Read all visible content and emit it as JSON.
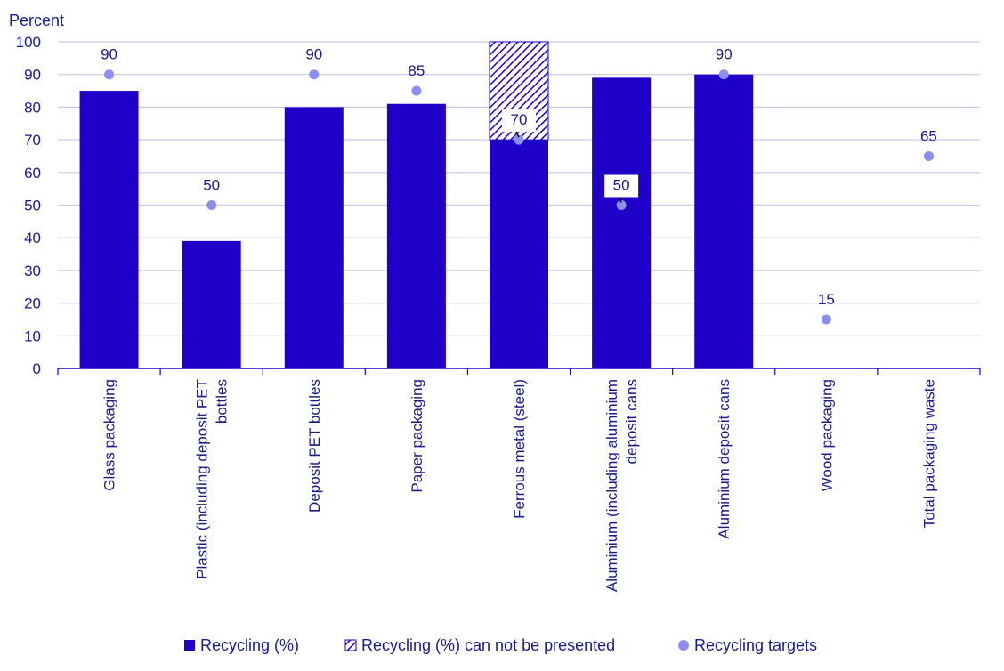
{
  "chart_data": {
    "type": "bar",
    "ylabel": "Percent",
    "ylim": [
      0,
      100
    ],
    "yticks": [
      0,
      10,
      20,
      30,
      40,
      50,
      60,
      70,
      80,
      90,
      100
    ],
    "grid": true,
    "categories": [
      [
        "Glass packaging"
      ],
      [
        "Plastic (including deposit PET",
        "bottles"
      ],
      [
        "Deposit PET bottles"
      ],
      [
        "Paper packaging"
      ],
      [
        "Ferrous metal (steel)"
      ],
      [
        "Aluminium (including aluminium",
        "deposit cans"
      ],
      [
        "Aluminium deposit cans"
      ],
      [
        "Wood packaging"
      ],
      [
        "Total packaging waste"
      ]
    ],
    "series": [
      {
        "name": "Recycling (%)",
        "type": "bar",
        "values": [
          85,
          39,
          80,
          81,
          70,
          89,
          90,
          null,
          null
        ]
      },
      {
        "name": "Recycling (%) can not be presented",
        "type": "bar-hatched",
        "values": [
          null,
          null,
          null,
          null,
          30,
          null,
          null,
          null,
          null
        ]
      },
      {
        "name": "Recycling targets",
        "type": "point",
        "values": [
          90,
          50,
          90,
          85,
          70,
          50,
          90,
          15,
          65
        ]
      }
    ],
    "target_labels": [
      "90",
      "50",
      "90",
      "85",
      "70",
      "50",
      "90",
      "15",
      "65"
    ],
    "boxed_labels": [
      4,
      5
    ],
    "legend_position": "bottom",
    "colors": {
      "bar": "#1f00c8",
      "target": "#8a8ff0",
      "text": "#1a1a8c",
      "grid": "#c8c8ec",
      "axis": "#1f00c8"
    }
  }
}
